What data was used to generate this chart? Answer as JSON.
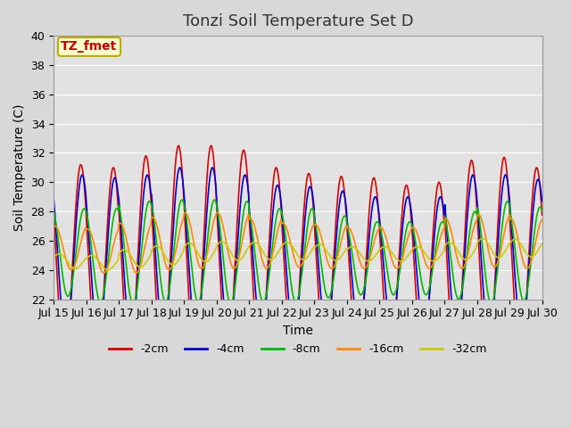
{
  "title": "Tonzi Soil Temperature Set D",
  "xlabel": "Time",
  "ylabel": "Soil Temperature (C)",
  "ylim": [
    22,
    40
  ],
  "yticks": [
    22,
    24,
    26,
    28,
    30,
    32,
    34,
    36,
    38,
    40
  ],
  "xtick_labels": [
    "Jul 15",
    "Jul 16",
    "Jul 17",
    "Jul 18",
    "Jul 19",
    "Jul 20",
    "Jul 21",
    "Jul 22",
    "Jul 23",
    "Jul 24",
    "Jul 25",
    "Jul 26",
    "Jul 27",
    "Jul 28",
    "Jul 29",
    "Jul 30"
  ],
  "series_colors": [
    "#dd0000",
    "#0000dd",
    "#00bb00",
    "#ff8800",
    "#cccc00"
  ],
  "series_labels": [
    "-2cm",
    "-4cm",
    "-8cm",
    "-16cm",
    "-32cm"
  ],
  "legend_label": "TZ_fmet",
  "legend_box_facecolor": "#ffffcc",
  "legend_box_edgecolor": "#bbaa00",
  "fig_bg_color": "#d8d8d8",
  "ax_bg_color": "#e2e2e2",
  "title_fontsize": 13,
  "label_fontsize": 10,
  "tick_fontsize": 9,
  "grid_color": "#ffffff",
  "spine_color": "#999999",
  "n_days": 15,
  "samples_per_day": 48,
  "red_amps": [
    6.7,
    6.7,
    7.0,
    7.5,
    7.5,
    7.2,
    6.5,
    6.3,
    6.2,
    6.1,
    5.8,
    6.0,
    7.0,
    7.2,
    6.5
  ],
  "blue_amps": [
    5.5,
    5.5,
    5.5,
    5.8,
    5.8,
    5.5,
    5.0,
    5.0,
    4.8,
    4.5,
    4.5,
    4.5,
    5.5,
    5.5,
    5.2
  ],
  "green_amps": [
    3.0,
    3.2,
    3.5,
    3.5,
    3.5,
    3.5,
    3.2,
    3.2,
    2.8,
    2.5,
    2.5,
    2.5,
    3.0,
    3.5,
    3.2
  ],
  "orange_amps": [
    1.5,
    1.5,
    1.7,
    1.8,
    1.9,
    1.9,
    1.7,
    1.5,
    1.5,
    1.4,
    1.4,
    1.4,
    1.7,
    1.8,
    1.7
  ],
  "yellow_amps": [
    0.5,
    0.5,
    0.6,
    0.65,
    0.65,
    0.65,
    0.6,
    0.6,
    0.55,
    0.5,
    0.5,
    0.5,
    0.6,
    0.65,
    0.6
  ],
  "red_base": [
    24.5,
    24.3,
    24.8,
    25.0,
    25.0,
    25.0,
    24.5,
    24.3,
    24.2,
    24.2,
    24.0,
    24.0,
    24.5,
    24.5,
    24.5
  ],
  "blue_base": [
    25.0,
    24.8,
    25.0,
    25.2,
    25.2,
    25.0,
    24.8,
    24.7,
    24.6,
    24.5,
    24.5,
    24.5,
    25.0,
    25.0,
    25.0
  ],
  "green_base": [
    25.2,
    25.0,
    25.2,
    25.3,
    25.3,
    25.2,
    25.0,
    25.0,
    24.9,
    24.8,
    24.8,
    24.8,
    25.0,
    25.2,
    25.1
  ],
  "orange_base": [
    25.5,
    25.3,
    25.5,
    25.8,
    26.0,
    26.0,
    25.8,
    25.7,
    25.6,
    25.5,
    25.5,
    25.5,
    25.8,
    26.0,
    25.8
  ],
  "yellow_base": [
    24.6,
    24.5,
    24.8,
    25.0,
    25.2,
    25.3,
    25.3,
    25.3,
    25.2,
    25.1,
    25.1,
    25.1,
    25.3,
    25.5,
    25.5
  ],
  "phase_lags": [
    0.0,
    1.0,
    2.5,
    5.0,
    8.0
  ]
}
